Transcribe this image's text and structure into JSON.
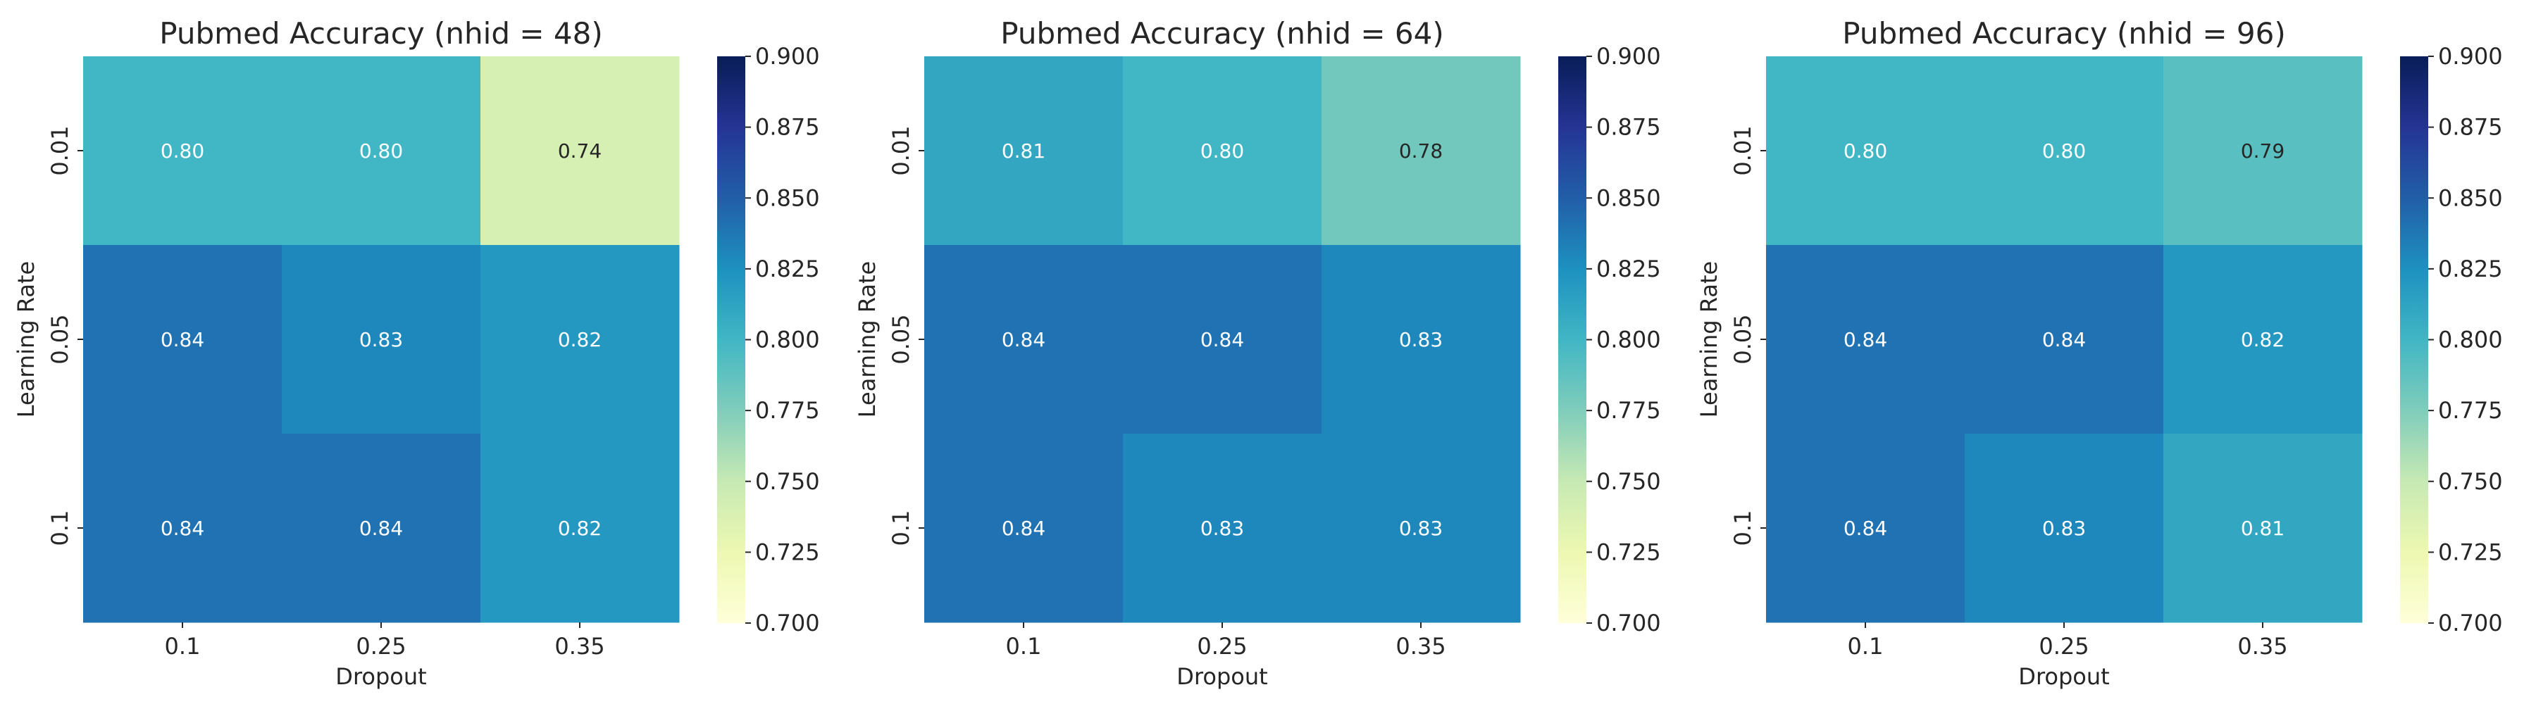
{
  "chart_data": [
    {
      "type": "heatmap",
      "title": "Pubmed Accuracy (nhid = 48)",
      "xlabel": "Dropout",
      "ylabel": "Learning Rate",
      "x_categories": [
        "0.1",
        "0.25",
        "0.35"
      ],
      "y_categories": [
        "0.01",
        "0.05",
        "0.1"
      ],
      "values": [
        [
          0.8,
          0.8,
          0.74
        ],
        [
          0.84,
          0.83,
          0.82
        ],
        [
          0.84,
          0.84,
          0.82
        ]
      ],
      "cell_labels": [
        [
          "0.80",
          "0.80",
          "0.74"
        ],
        [
          "0.84",
          "0.83",
          "0.82"
        ],
        [
          "0.84",
          "0.84",
          "0.82"
        ]
      ],
      "colorbar": {
        "vmin": 0.7,
        "vmax": 0.9,
        "colormap": "YlGnBu",
        "ticks": [
          "0.700",
          "0.725",
          "0.750",
          "0.775",
          "0.800",
          "0.825",
          "0.850",
          "0.875",
          "0.900"
        ]
      }
    },
    {
      "type": "heatmap",
      "title": "Pubmed Accuracy (nhid = 64)",
      "xlabel": "Dropout",
      "ylabel": "Learning Rate",
      "x_categories": [
        "0.1",
        "0.25",
        "0.35"
      ],
      "y_categories": [
        "0.01",
        "0.05",
        "0.1"
      ],
      "values": [
        [
          0.81,
          0.8,
          0.78
        ],
        [
          0.84,
          0.84,
          0.83
        ],
        [
          0.84,
          0.83,
          0.83
        ]
      ],
      "cell_labels": [
        [
          "0.81",
          "0.80",
          "0.78"
        ],
        [
          "0.84",
          "0.84",
          "0.83"
        ],
        [
          "0.84",
          "0.83",
          "0.83"
        ]
      ],
      "colorbar": {
        "vmin": 0.7,
        "vmax": 0.9,
        "colormap": "YlGnBu",
        "ticks": [
          "0.700",
          "0.725",
          "0.750",
          "0.775",
          "0.800",
          "0.825",
          "0.850",
          "0.875",
          "0.900"
        ]
      }
    },
    {
      "type": "heatmap",
      "title": "Pubmed Accuracy (nhid = 96)",
      "xlabel": "Dropout",
      "ylabel": "Learning Rate",
      "x_categories": [
        "0.1",
        "0.25",
        "0.35"
      ],
      "y_categories": [
        "0.01",
        "0.05",
        "0.1"
      ],
      "values": [
        [
          0.8,
          0.8,
          0.79
        ],
        [
          0.84,
          0.84,
          0.82
        ],
        [
          0.84,
          0.83,
          0.81
        ]
      ],
      "cell_labels": [
        [
          "0.80",
          "0.80",
          "0.79"
        ],
        [
          "0.84",
          "0.84",
          "0.82"
        ],
        [
          "0.84",
          "0.83",
          "0.81"
        ]
      ],
      "colorbar": {
        "vmin": 0.7,
        "vmax": 0.9,
        "colormap": "YlGnBu",
        "ticks": [
          "0.700",
          "0.725",
          "0.750",
          "0.775",
          "0.800",
          "0.825",
          "0.850",
          "0.875",
          "0.900"
        ]
      }
    }
  ]
}
